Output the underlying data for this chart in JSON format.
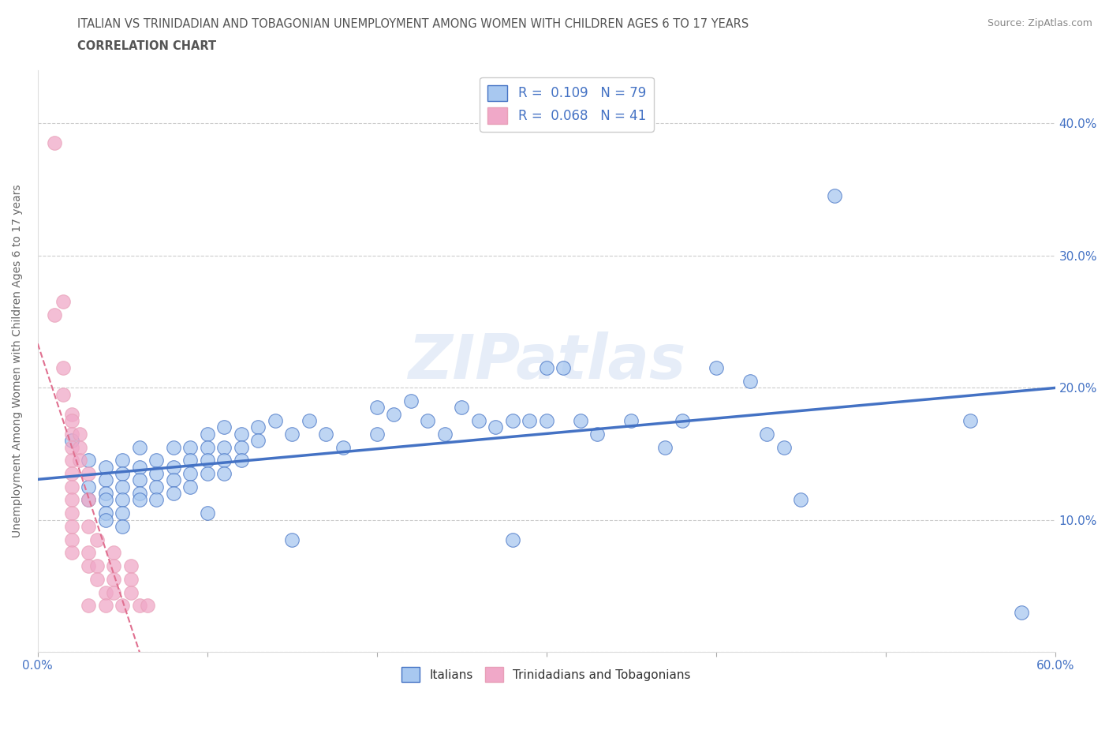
{
  "title_line1": "ITALIAN VS TRINIDADIAN AND TOBAGONIAN UNEMPLOYMENT AMONG WOMEN WITH CHILDREN AGES 6 TO 17 YEARS",
  "title_line2": "CORRELATION CHART",
  "source": "Source: ZipAtlas.com",
  "ylabel": "Unemployment Among Women with Children Ages 6 to 17 years",
  "xlim": [
    0.0,
    0.6
  ],
  "ylim": [
    0.0,
    0.44
  ],
  "xticks": [
    0.0,
    0.1,
    0.2,
    0.3,
    0.4,
    0.5,
    0.6
  ],
  "xticklabels": [
    "0.0%",
    "",
    "",
    "",
    "",
    "",
    "60.0%"
  ],
  "yticks": [
    0.0,
    0.1,
    0.2,
    0.3,
    0.4
  ],
  "yticklabels": [
    "",
    "10.0%",
    "20.0%",
    "30.0%",
    "40.0%"
  ],
  "grid_color": "#cccccc",
  "watermark": "ZIPatlas",
  "italian_color": "#a8c8f0",
  "trinidadian_color": "#f0a8c8",
  "italian_line_color": "#4472c4",
  "trinidadian_line_color": "#e8a0b8",
  "italian_scatter": [
    [
      0.02,
      0.16
    ],
    [
      0.03,
      0.145
    ],
    [
      0.03,
      0.125
    ],
    [
      0.03,
      0.115
    ],
    [
      0.04,
      0.14
    ],
    [
      0.04,
      0.13
    ],
    [
      0.04,
      0.12
    ],
    [
      0.04,
      0.115
    ],
    [
      0.04,
      0.105
    ],
    [
      0.04,
      0.1
    ],
    [
      0.05,
      0.145
    ],
    [
      0.05,
      0.135
    ],
    [
      0.05,
      0.125
    ],
    [
      0.05,
      0.115
    ],
    [
      0.05,
      0.105
    ],
    [
      0.05,
      0.095
    ],
    [
      0.06,
      0.155
    ],
    [
      0.06,
      0.14
    ],
    [
      0.06,
      0.13
    ],
    [
      0.06,
      0.12
    ],
    [
      0.06,
      0.115
    ],
    [
      0.07,
      0.145
    ],
    [
      0.07,
      0.135
    ],
    [
      0.07,
      0.125
    ],
    [
      0.07,
      0.115
    ],
    [
      0.08,
      0.155
    ],
    [
      0.08,
      0.14
    ],
    [
      0.08,
      0.13
    ],
    [
      0.08,
      0.12
    ],
    [
      0.09,
      0.155
    ],
    [
      0.09,
      0.145
    ],
    [
      0.09,
      0.135
    ],
    [
      0.09,
      0.125
    ],
    [
      0.1,
      0.165
    ],
    [
      0.1,
      0.155
    ],
    [
      0.1,
      0.145
    ],
    [
      0.1,
      0.135
    ],
    [
      0.1,
      0.105
    ],
    [
      0.11,
      0.17
    ],
    [
      0.11,
      0.155
    ],
    [
      0.11,
      0.145
    ],
    [
      0.11,
      0.135
    ],
    [
      0.12,
      0.165
    ],
    [
      0.12,
      0.155
    ],
    [
      0.12,
      0.145
    ],
    [
      0.13,
      0.17
    ],
    [
      0.13,
      0.16
    ],
    [
      0.14,
      0.175
    ],
    [
      0.15,
      0.165
    ],
    [
      0.15,
      0.085
    ],
    [
      0.16,
      0.175
    ],
    [
      0.17,
      0.165
    ],
    [
      0.18,
      0.155
    ],
    [
      0.2,
      0.185
    ],
    [
      0.2,
      0.165
    ],
    [
      0.21,
      0.18
    ],
    [
      0.22,
      0.19
    ],
    [
      0.23,
      0.175
    ],
    [
      0.24,
      0.165
    ],
    [
      0.25,
      0.185
    ],
    [
      0.26,
      0.175
    ],
    [
      0.27,
      0.17
    ],
    [
      0.28,
      0.175
    ],
    [
      0.28,
      0.085
    ],
    [
      0.29,
      0.175
    ],
    [
      0.3,
      0.215
    ],
    [
      0.3,
      0.175
    ],
    [
      0.31,
      0.215
    ],
    [
      0.32,
      0.175
    ],
    [
      0.33,
      0.165
    ],
    [
      0.35,
      0.175
    ],
    [
      0.37,
      0.155
    ],
    [
      0.38,
      0.175
    ],
    [
      0.4,
      0.215
    ],
    [
      0.42,
      0.205
    ],
    [
      0.43,
      0.165
    ],
    [
      0.44,
      0.155
    ],
    [
      0.45,
      0.115
    ],
    [
      0.47,
      0.345
    ],
    [
      0.55,
      0.175
    ],
    [
      0.58,
      0.03
    ]
  ],
  "trinidadian_scatter": [
    [
      0.01,
      0.385
    ],
    [
      0.01,
      0.255
    ],
    [
      0.015,
      0.265
    ],
    [
      0.015,
      0.215
    ],
    [
      0.015,
      0.195
    ],
    [
      0.02,
      0.18
    ],
    [
      0.02,
      0.175
    ],
    [
      0.02,
      0.165
    ],
    [
      0.02,
      0.155
    ],
    [
      0.02,
      0.145
    ],
    [
      0.02,
      0.135
    ],
    [
      0.02,
      0.125
    ],
    [
      0.02,
      0.115
    ],
    [
      0.02,
      0.105
    ],
    [
      0.02,
      0.095
    ],
    [
      0.02,
      0.085
    ],
    [
      0.02,
      0.075
    ],
    [
      0.025,
      0.165
    ],
    [
      0.025,
      0.155
    ],
    [
      0.025,
      0.145
    ],
    [
      0.03,
      0.135
    ],
    [
      0.03,
      0.115
    ],
    [
      0.03,
      0.095
    ],
    [
      0.03,
      0.075
    ],
    [
      0.03,
      0.065
    ],
    [
      0.03,
      0.035
    ],
    [
      0.035,
      0.085
    ],
    [
      0.035,
      0.065
    ],
    [
      0.035,
      0.055
    ],
    [
      0.04,
      0.045
    ],
    [
      0.04,
      0.035
    ],
    [
      0.045,
      0.075
    ],
    [
      0.045,
      0.065
    ],
    [
      0.045,
      0.055
    ],
    [
      0.045,
      0.045
    ],
    [
      0.05,
      0.035
    ],
    [
      0.055,
      0.065
    ],
    [
      0.055,
      0.055
    ],
    [
      0.055,
      0.045
    ],
    [
      0.06,
      0.035
    ],
    [
      0.065,
      0.035
    ]
  ],
  "italian_trend": [
    0.0,
    0.6,
    0.103,
    0.133
  ],
  "trinidadian_trend": [
    0.0,
    0.06,
    0.07,
    0.125
  ]
}
